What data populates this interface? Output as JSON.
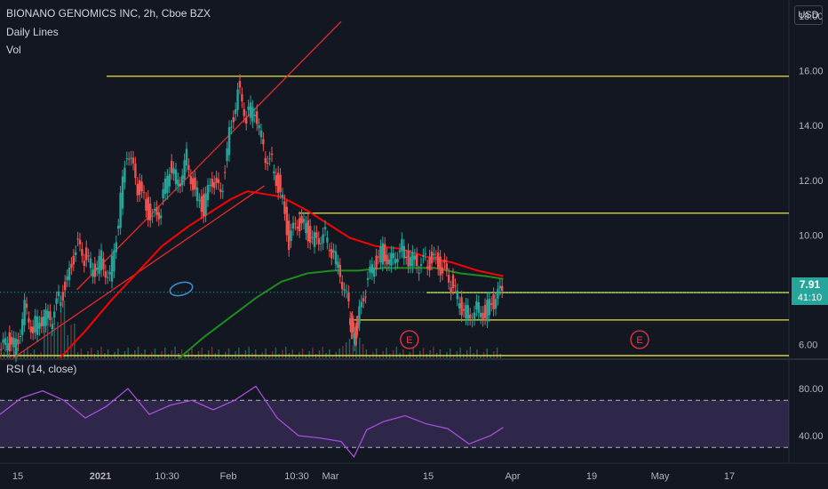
{
  "chart_data": [
    {
      "type": "candlestick",
      "title": "BIONANO GENOMICS INC, 2h, Cboe BZX",
      "indicators": [
        "Daily Lines",
        "Vol"
      ],
      "currency": "USD",
      "x_ticks": [
        "15",
        "2021",
        "10:30",
        "Feb",
        "10:30",
        "Mar",
        "15",
        "Apr",
        "19",
        "May",
        "17"
      ],
      "y_ticks": [
        "18.00",
        "16.00",
        "14.00",
        "12.00",
        "10.00",
        "6.00"
      ],
      "ylim": [
        5.5,
        18.6
      ],
      "last_price": "7.91",
      "countdown": "41:10",
      "earnings_markers": [
        "E",
        "E"
      ],
      "price_path": [
        [
          0,
          5.6
        ],
        [
          0.04,
          6.1
        ],
        [
          0.08,
          5.9
        ],
        [
          0.12,
          7.4
        ],
        [
          0.16,
          6.6
        ],
        [
          0.2,
          7.0
        ],
        [
          0.24,
          6.9
        ],
        [
          0.28,
          7.6
        ],
        [
          0.32,
          8.3
        ],
        [
          0.36,
          9.6
        ],
        [
          0.4,
          9.2
        ],
        [
          0.44,
          8.7
        ],
        [
          0.48,
          9.1
        ],
        [
          0.52,
          8.5
        ],
        [
          0.56,
          10.6
        ],
        [
          0.6,
          13.1
        ],
        [
          0.64,
          12.0
        ],
        [
          0.68,
          11.2
        ],
        [
          0.72,
          10.6
        ],
        [
          0.76,
          11.0
        ],
        [
          0.8,
          12.5
        ],
        [
          0.84,
          11.9
        ],
        [
          0.88,
          12.8
        ],
        [
          0.92,
          11.6
        ],
        [
          0.96,
          11.0
        ],
        [
          1.0,
          12.0
        ],
        [
          1.04,
          11.4
        ],
        [
          1.08,
          13.6
        ],
        [
          1.12,
          15.3
        ],
        [
          1.16,
          14.4
        ],
        [
          1.2,
          14.6
        ],
        [
          1.24,
          13.1
        ],
        [
          1.28,
          12.6
        ],
        [
          1.32,
          11.6
        ],
        [
          1.36,
          9.8
        ],
        [
          1.4,
          10.4
        ],
        [
          1.44,
          10.2
        ],
        [
          1.48,
          9.8
        ],
        [
          1.52,
          10.1
        ],
        [
          1.56,
          9.5
        ],
        [
          1.6,
          8.6
        ],
        [
          1.64,
          7.3
        ],
        [
          1.66,
          6.2
        ],
        [
          1.68,
          6.7
        ],
        [
          1.72,
          8.1
        ],
        [
          1.76,
          8.9
        ],
        [
          1.8,
          9.4
        ],
        [
          1.84,
          9.1
        ],
        [
          1.88,
          9.6
        ],
        [
          1.92,
          9.2
        ],
        [
          1.96,
          8.9
        ],
        [
          2.0,
          9.0
        ],
        [
          2.04,
          9.1
        ],
        [
          2.08,
          8.8
        ],
        [
          2.12,
          8.2
        ],
        [
          2.16,
          7.5
        ],
        [
          2.2,
          7.1
        ],
        [
          2.24,
          7.4
        ],
        [
          2.28,
          7.2
        ],
        [
          2.32,
          7.6
        ],
        [
          2.36,
          7.9
        ]
      ],
      "series": [
        {
          "color": "#ff0000",
          "points": [
            [
              0.28,
              5.5
            ],
            [
              0.4,
              6.5
            ],
            [
              0.52,
              7.6
            ],
            [
              0.64,
              8.6
            ],
            [
              0.76,
              9.6
            ],
            [
              0.88,
              10.3
            ],
            [
              1.0,
              10.9
            ],
            [
              1.08,
              11.3
            ],
            [
              1.16,
              11.6
            ],
            [
              1.24,
              11.5
            ],
            [
              1.32,
              11.4
            ],
            [
              1.44,
              10.9
            ],
            [
              1.52,
              10.5
            ],
            [
              1.64,
              9.9
            ],
            [
              1.76,
              9.6
            ],
            [
              1.88,
              9.5
            ],
            [
              2.0,
              9.2
            ],
            [
              2.12,
              9.0
            ],
            [
              2.24,
              8.7
            ],
            [
              2.36,
              8.5
            ]
          ]
        },
        {
          "color": "#1e8c1e",
          "points": [
            [
              0.84,
              5.5
            ],
            [
              0.96,
              6.3
            ],
            [
              1.08,
              7.0
            ],
            [
              1.2,
              7.7
            ],
            [
              1.32,
              8.3
            ],
            [
              1.44,
              8.6
            ],
            [
              1.56,
              8.7
            ],
            [
              1.68,
              8.7
            ],
            [
              1.8,
              8.8
            ],
            [
              1.92,
              8.8
            ],
            [
              2.04,
              8.8
            ],
            [
              2.16,
              8.6
            ],
            [
              2.28,
              8.5
            ],
            [
              2.36,
              8.4
            ]
          ]
        }
      ],
      "horizontal_lines": [
        {
          "y": 15.8,
          "x_from": 0.5
        },
        {
          "y": 10.8,
          "x_from": 1.4
        },
        {
          "y": 7.9,
          "x_from": 2.0
        },
        {
          "y": 6.9,
          "x_from": 1.66
        },
        {
          "y": 5.6,
          "x_from": 0.0
        }
      ],
      "channel": {
        "lower": [
          [
            0.06,
            5.5
          ],
          [
            1.24,
            11.8
          ]
        ],
        "upper": [
          [
            0.36,
            8.0
          ],
          [
            1.6,
            17.8
          ]
        ]
      },
      "event_markers_x": [
        1.92,
        3.0
      ]
    },
    {
      "type": "line",
      "title": "RSI (14, close)",
      "y_ticks": [
        "80.00",
        "40.00"
      ],
      "ylim": [
        20,
        90
      ],
      "band": [
        30,
        70
      ],
      "points": [
        [
          0,
          58
        ],
        [
          0.1,
          72
        ],
        [
          0.2,
          78
        ],
        [
          0.3,
          70
        ],
        [
          0.4,
          55
        ],
        [
          0.5,
          65
        ],
        [
          0.6,
          80
        ],
        [
          0.7,
          58
        ],
        [
          0.8,
          66
        ],
        [
          0.9,
          70
        ],
        [
          1.0,
          62
        ],
        [
          1.1,
          70
        ],
        [
          1.2,
          82
        ],
        [
          1.3,
          55
        ],
        [
          1.4,
          40
        ],
        [
          1.5,
          38
        ],
        [
          1.6,
          35
        ],
        [
          1.66,
          22
        ],
        [
          1.72,
          45
        ],
        [
          1.8,
          52
        ],
        [
          1.9,
          57
        ],
        [
          2.0,
          50
        ],
        [
          2.1,
          46
        ],
        [
          2.2,
          33
        ],
        [
          2.3,
          40
        ],
        [
          2.36,
          47
        ]
      ]
    }
  ]
}
